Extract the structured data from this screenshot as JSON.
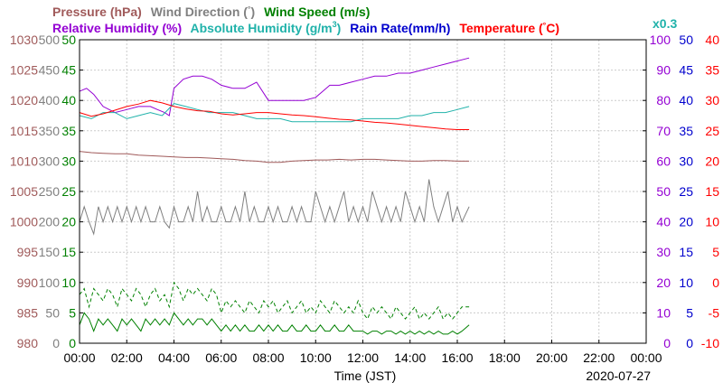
{
  "chart_data": {
    "type": "line",
    "date_label": "2020-07-27",
    "xlabel": "Time (JST)",
    "x_ticks": [
      "00:00",
      "02:00",
      "04:00",
      "06:00",
      "08:00",
      "10:00",
      "12:00",
      "14:00",
      "16:00",
      "18:00",
      "20:00",
      "22:00",
      "00:00"
    ],
    "x_range_hours": [
      0,
      24
    ],
    "legend": [
      {
        "label": "Pressure (hPa)",
        "color": "#a05a5a"
      },
      {
        "label": "Wind Direction (°)",
        "color": "#808080"
      },
      {
        "label": "Wind Speed (m/s)",
        "color": "#008000"
      },
      {
        "label": "Relative Humidity (%)",
        "color": "#9400d3"
      },
      {
        "label": "Absolute Humidity (g/m³)",
        "color": "#20b2aa"
      },
      {
        "label": "Rain Rate(mm/h)",
        "color": "#0000cd"
      },
      {
        "label": "Temperature (°C)",
        "color": "#ff0000"
      }
    ],
    "legend_line1": {
      "pressure": "Pressure (hPa)",
      "wind_dir": "Wind Direction (",
      "wind_dir_deg": "°",
      "wind_dir_close": ")",
      "wind_speed": "Wind Speed (m/s)"
    },
    "legend_line2": {
      "rh": "Relative Humidity (%)",
      "ah": "Absolute Humidity (g/m",
      "ah_sup": "3",
      "ah_close": ")",
      "rain": "Rain Rate(mm/h)",
      "temp": "Temperature (",
      "temp_deg": "°",
      "temp_close": "C)",
      "scale": "x0.3"
    },
    "left_axes": {
      "pressure": {
        "color": "#a05a5a",
        "ticks": [
          "980",
          "985",
          "990",
          "995",
          "1000",
          "1005",
          "1010",
          "1015",
          "1020",
          "1025",
          "1030"
        ],
        "range": [
          980,
          1030
        ]
      },
      "wind_direction": {
        "color": "#808080",
        "ticks": [
          "0",
          "50",
          "100",
          "150",
          "200",
          "250",
          "300",
          "350",
          "400",
          "450",
          "500"
        ],
        "range": [
          0,
          500
        ]
      },
      "wind_speed": {
        "color": "#008000",
        "ticks": [
          "0",
          "5",
          "10",
          "15",
          "20",
          "25",
          "30",
          "35",
          "40",
          "45",
          "50"
        ],
        "range": [
          0,
          50
        ]
      }
    },
    "right_axes": {
      "humidity": {
        "color": "#9400d3",
        "ticks": [
          "0",
          "10",
          "20",
          "30",
          "40",
          "50",
          "60",
          "70",
          "80",
          "90",
          "100"
        ],
        "range": [
          0,
          100
        ]
      },
      "rain_rate": {
        "color": "#0000cd",
        "ticks": [
          "0",
          "5",
          "10",
          "15",
          "20",
          "25",
          "30",
          "35",
          "40",
          "45",
          "50"
        ],
        "range": [
          0,
          50
        ]
      },
      "temperature": {
        "color": "#ff0000",
        "ticks": [
          "-10",
          "-5",
          "0",
          "5",
          "10",
          "15",
          "20",
          "25",
          "30",
          "35",
          "40"
        ],
        "range": [
          -10,
          40
        ]
      }
    },
    "series": [
      {
        "key": "relative_humidity",
        "axis": "humidity",
        "color": "#9400d3",
        "style": "solid",
        "x": [
          0,
          0.3,
          0.6,
          1,
          1.5,
          2,
          2.5,
          3,
          3.3,
          3.6,
          3.8,
          4,
          4.4,
          4.8,
          5.2,
          5.6,
          6,
          6.5,
          7,
          7.5,
          8,
          8.5,
          9,
          9.5,
          10,
          10.3,
          10.6,
          11,
          11.5,
          12,
          12.5,
          13,
          13.5,
          14,
          14.5,
          15,
          15.5,
          16,
          16.5
        ],
        "y": [
          83,
          84,
          82,
          78,
          76,
          77,
          78,
          78,
          77,
          76,
          75,
          84,
          87,
          88,
          88,
          87,
          85,
          84,
          84,
          86,
          80,
          80,
          80,
          80,
          81,
          83,
          85,
          85,
          86,
          87,
          88,
          88,
          89,
          89,
          90,
          91,
          92,
          93,
          94
        ]
      },
      {
        "key": "absolute_humidity",
        "axis": "humidity",
        "color": "#20b2aa",
        "style": "solid",
        "x": [
          0,
          0.5,
          1,
          1.5,
          2,
          2.5,
          3,
          3.5,
          4,
          4.5,
          5,
          5.5,
          6,
          6.5,
          7,
          7.5,
          8,
          8.5,
          9,
          9.5,
          10,
          10.5,
          11,
          11.5,
          12,
          12.5,
          13,
          13.5,
          14,
          14.5,
          15,
          15.5,
          16,
          16.5
        ],
        "y": [
          75,
          74,
          76,
          76,
          74,
          75,
          76,
          75,
          79,
          78,
          77,
          76,
          76,
          76,
          75,
          74,
          74,
          74,
          73,
          73,
          73,
          73,
          73,
          73,
          74,
          74,
          74,
          74,
          75,
          75,
          76,
          76,
          77,
          78
        ]
      },
      {
        "key": "temperature",
        "axis": "temperature",
        "color": "#ff0000",
        "style": "solid",
        "x": [
          0,
          0.5,
          1,
          1.5,
          2,
          2.5,
          3,
          3.5,
          4,
          4.5,
          5,
          5.5,
          6,
          6.5,
          7,
          7.5,
          8,
          8.5,
          9,
          9.5,
          10,
          10.5,
          11,
          11.5,
          12,
          12.5,
          13,
          13.5,
          14,
          14.5,
          15,
          15.5,
          16,
          16.5
        ],
        "y": [
          28,
          27.4,
          27.8,
          28.4,
          29,
          29.4,
          30,
          29.6,
          29,
          28.6,
          28.3,
          28.2,
          27.8,
          27.6,
          27.8,
          28.0,
          28.0,
          27.8,
          27.6,
          27.5,
          27.3,
          27.1,
          26.9,
          26.8,
          26.6,
          26.4,
          26.3,
          26.1,
          25.9,
          25.7,
          25.5,
          25.3,
          25.2,
          25.2
        ]
      },
      {
        "key": "pressure",
        "axis": "pressure",
        "color": "#a05a5a",
        "style": "solid",
        "x": [
          0,
          0.5,
          1,
          1.5,
          2,
          2.5,
          3,
          3.5,
          4,
          4.5,
          5,
          5.5,
          6,
          6.5,
          7,
          7.5,
          8,
          8.5,
          9,
          9.5,
          10,
          10.5,
          11,
          11.5,
          12,
          12.5,
          13,
          13.5,
          14,
          14.5,
          15,
          15.5,
          16,
          16.5
        ],
        "y": [
          1011.6,
          1011.4,
          1011.3,
          1011.2,
          1011.2,
          1011.0,
          1010.9,
          1010.8,
          1010.7,
          1010.6,
          1010.6,
          1010.5,
          1010.4,
          1010.3,
          1010.1,
          1010.0,
          1009.8,
          1009.8,
          1010.0,
          1010.1,
          1010.2,
          1010.2,
          1010.3,
          1010.2,
          1010.3,
          1010.3,
          1010.2,
          1010.1,
          1010.0,
          1010.0,
          1010.1,
          1010.1,
          1010.0,
          1010.0
        ]
      },
      {
        "key": "wind_direction",
        "axis": "wind_direction",
        "color": "#808080",
        "style": "solid",
        "x": [
          0,
          0.2,
          0.4,
          0.6,
          0.8,
          1,
          1.2,
          1.4,
          1.6,
          1.8,
          2,
          2.2,
          2.4,
          2.6,
          2.8,
          3,
          3.2,
          3.4,
          3.6,
          3.8,
          4,
          4.2,
          4.4,
          4.6,
          4.8,
          5,
          5.2,
          5.4,
          5.6,
          5.8,
          6,
          6.2,
          6.4,
          6.6,
          6.8,
          7,
          7.2,
          7.4,
          7.6,
          7.8,
          8,
          8.2,
          8.4,
          8.6,
          8.8,
          9,
          9.2,
          9.4,
          9.6,
          9.8,
          10,
          10.2,
          10.4,
          10.6,
          10.8,
          11,
          11.2,
          11.4,
          11.6,
          11.8,
          12,
          12.2,
          12.4,
          12.6,
          12.8,
          13,
          13.2,
          13.4,
          13.6,
          13.8,
          14,
          14.2,
          14.4,
          14.6,
          14.8,
          15,
          15.2,
          15.4,
          15.6,
          15.8,
          16,
          16.2,
          16.5
        ],
        "y": [
          200,
          225,
          200,
          180,
          225,
          200,
          225,
          200,
          225,
          200,
          225,
          200,
          225,
          200,
          225,
          200,
          200,
          225,
          200,
          190,
          225,
          200,
          200,
          225,
          200,
          250,
          200,
          225,
          200,
          200,
          225,
          200,
          200,
          225,
          200,
          250,
          200,
          225,
          200,
          200,
          225,
          200,
          225,
          200,
          200,
          225,
          200,
          225,
          200,
          200,
          250,
          225,
          200,
          225,
          200,
          225,
          250,
          200,
          225,
          200,
          225,
          200,
          250,
          225,
          200,
          225,
          200,
          225,
          200,
          250,
          225,
          200,
          225,
          200,
          270,
          225,
          200,
          225,
          250,
          200,
          225,
          200,
          225
        ]
      },
      {
        "key": "wind_speed_max",
        "axis": "wind_speed",
        "color": "#008000",
        "style": "dashed",
        "x": [
          0,
          0.2,
          0.4,
          0.6,
          0.8,
          1,
          1.2,
          1.4,
          1.6,
          1.8,
          2,
          2.2,
          2.4,
          2.6,
          2.8,
          3,
          3.2,
          3.4,
          3.6,
          3.8,
          4,
          4.2,
          4.4,
          4.6,
          4.8,
          5,
          5.2,
          5.4,
          5.6,
          5.8,
          6,
          6.2,
          6.4,
          6.6,
          6.8,
          7,
          7.2,
          7.4,
          7.6,
          7.8,
          8,
          8.2,
          8.4,
          8.6,
          8.8,
          9,
          9.2,
          9.4,
          9.6,
          9.8,
          10,
          10.2,
          10.4,
          10.6,
          10.8,
          11,
          11.2,
          11.4,
          11.6,
          11.8,
          12,
          12.2,
          12.4,
          12.6,
          12.8,
          13,
          13.2,
          13.4,
          13.6,
          13.8,
          14,
          14.2,
          14.4,
          14.6,
          14.8,
          15,
          15.2,
          15.4,
          15.6,
          15.8,
          16,
          16.2,
          16.5
        ],
        "y": [
          8,
          9,
          6,
          9,
          8,
          7,
          9,
          8,
          6,
          9,
          8,
          7,
          9,
          8,
          6,
          8,
          9,
          7,
          8,
          6,
          10,
          9,
          7,
          9,
          8,
          9,
          8,
          7,
          9,
          8,
          5,
          7,
          6,
          7,
          6,
          5,
          7,
          6,
          5,
          7,
          6,
          7,
          5,
          6,
          7,
          5,
          6,
          7,
          5,
          6,
          5,
          7,
          6,
          5,
          7,
          6,
          5,
          6,
          5,
          7,
          5,
          4,
          6,
          5,
          6,
          5,
          4,
          6,
          5,
          4,
          5,
          6,
          4,
          5,
          4,
          5,
          6,
          4,
          5,
          4,
          5,
          6,
          6
        ]
      },
      {
        "key": "wind_speed_mean",
        "axis": "wind_speed",
        "color": "#008000",
        "style": "solid",
        "x": [
          0,
          0.2,
          0.4,
          0.6,
          0.8,
          1,
          1.2,
          1.4,
          1.6,
          1.8,
          2,
          2.2,
          2.4,
          2.6,
          2.8,
          3,
          3.2,
          3.4,
          3.6,
          3.8,
          4,
          4.2,
          4.4,
          4.6,
          4.8,
          5,
          5.2,
          5.4,
          5.6,
          5.8,
          6,
          6.2,
          6.4,
          6.6,
          6.8,
          7,
          7.2,
          7.4,
          7.6,
          7.8,
          8,
          8.2,
          8.4,
          8.6,
          8.8,
          9,
          9.2,
          9.4,
          9.6,
          9.8,
          10,
          10.2,
          10.4,
          10.6,
          10.8,
          11,
          11.2,
          11.4,
          11.6,
          11.8,
          12,
          12.2,
          12.4,
          12.6,
          12.8,
          13,
          13.2,
          13.4,
          13.6,
          13.8,
          14,
          14.2,
          14.4,
          14.6,
          14.8,
          15,
          15.2,
          15.4,
          15.6,
          15.8,
          16,
          16.2,
          16.5
        ],
        "y": [
          3,
          5,
          4,
          2,
          4,
          3,
          4,
          3,
          2,
          4,
          3,
          4,
          3,
          2,
          4,
          3,
          4,
          3,
          4,
          3,
          5,
          4,
          3,
          4,
          3,
          4,
          4,
          3,
          4,
          3,
          2,
          3,
          2,
          3,
          2,
          3,
          2,
          2,
          3,
          2,
          3,
          2,
          3,
          2,
          2,
          3,
          2,
          2,
          3,
          2,
          2,
          3,
          2,
          2,
          3,
          2,
          2,
          3,
          2,
          2,
          2,
          1.5,
          2,
          2,
          1.5,
          2,
          2,
          1.5,
          2,
          1.5,
          2,
          1.5,
          2,
          1.5,
          2,
          1.5,
          2,
          1.5,
          1.5,
          2,
          1.5,
          2,
          3
        ]
      }
    ]
  }
}
